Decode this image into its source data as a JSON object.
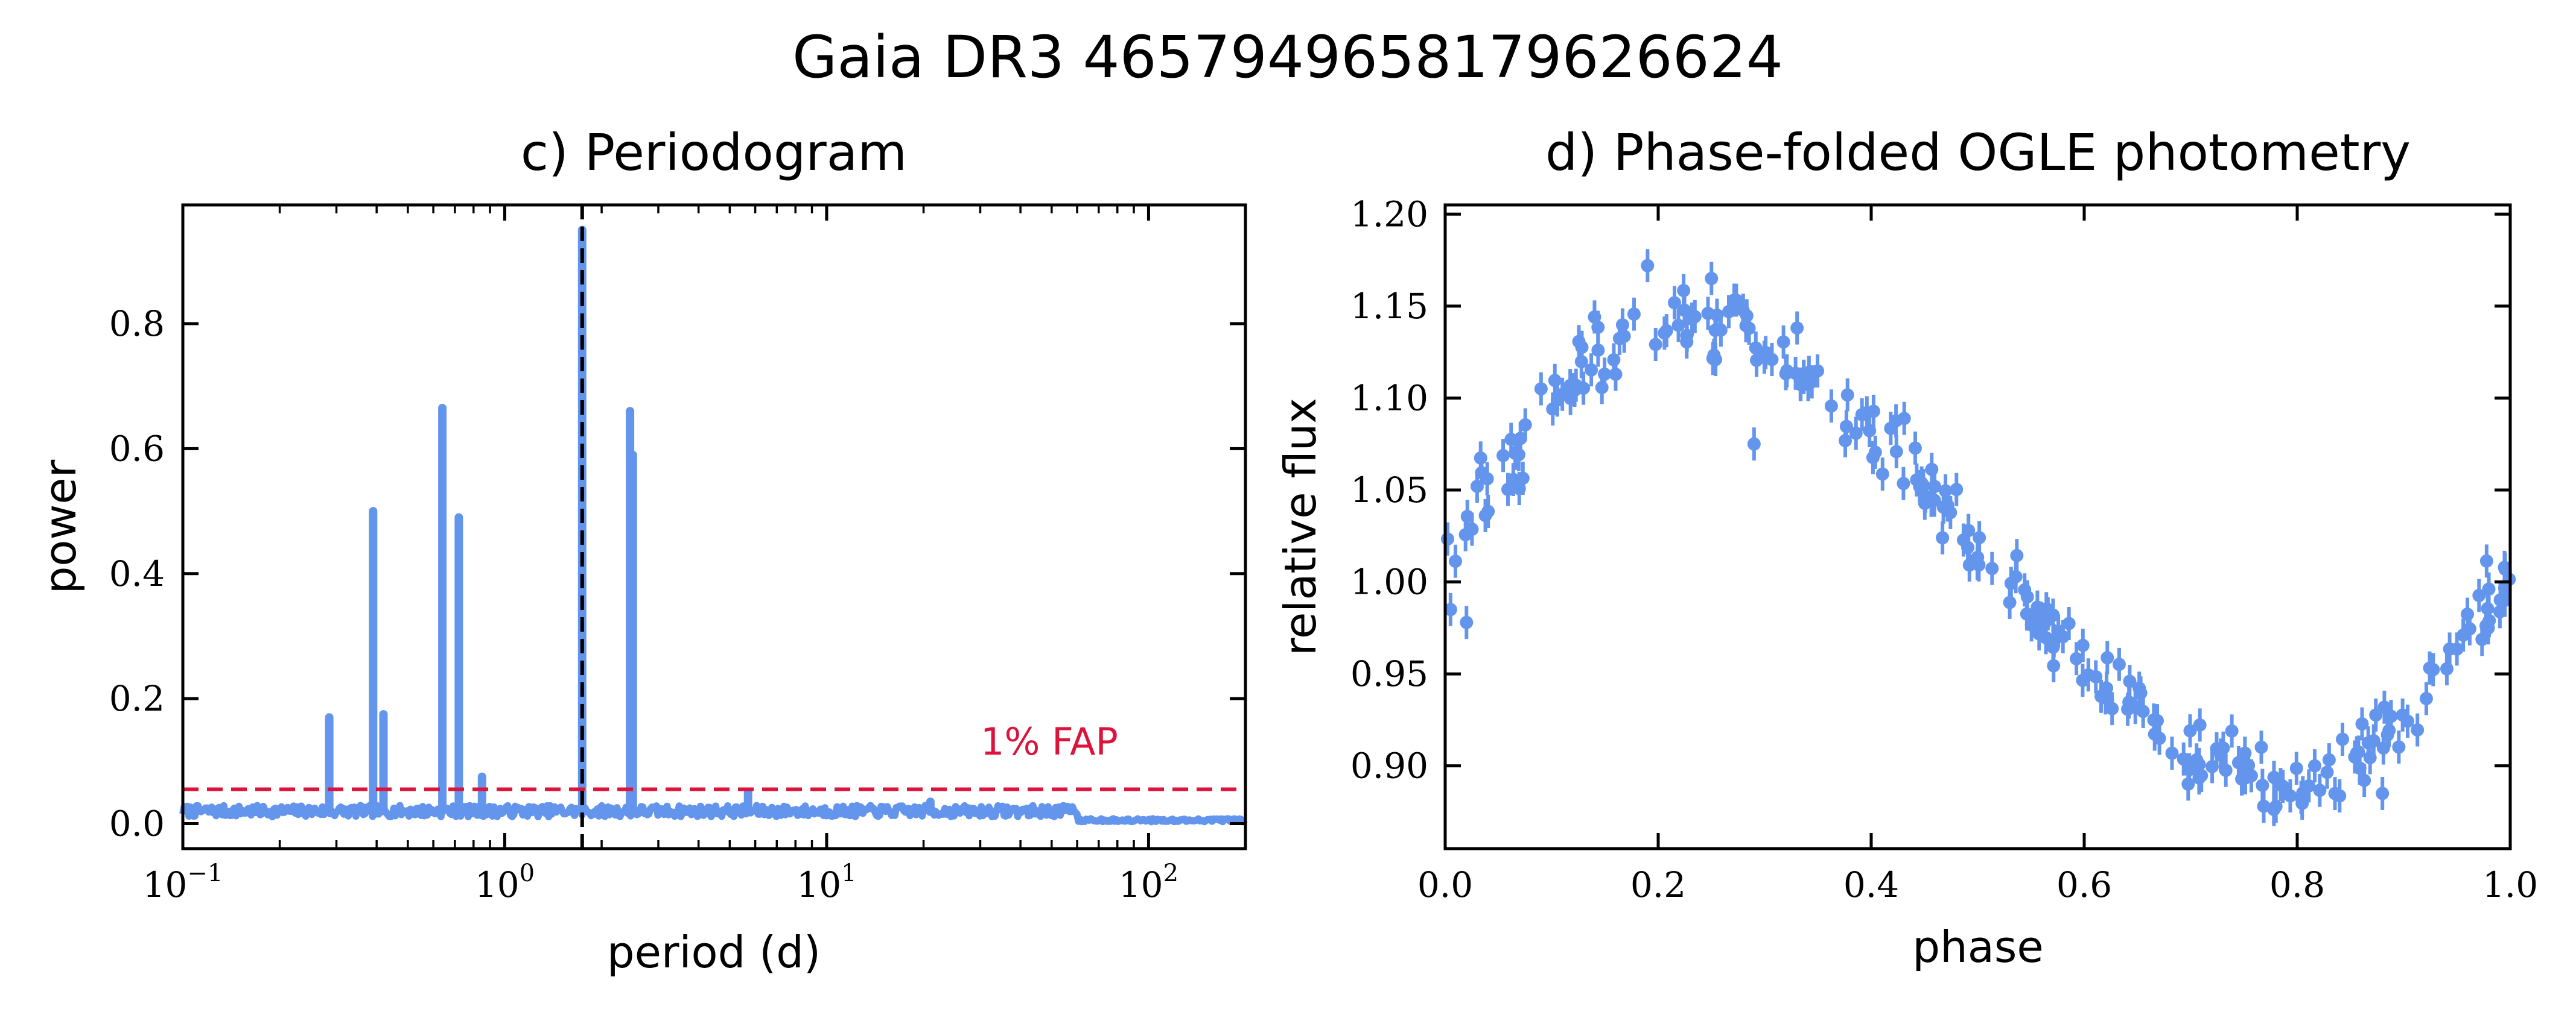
{
  "suptitle": "Gaia DR3 4657949658179626624",
  "chart_data": [
    {
      "type": "line",
      "title": "c) Periodogram",
      "xlabel": "period (d)",
      "ylabel": "power",
      "xscale": "log",
      "xlim": [
        0.1,
        200
      ],
      "ylim": [
        -0.04,
        0.99
      ],
      "xtick_labels": [
        {
          "base": "10",
          "exp": "−1",
          "value": 0.1
        },
        {
          "base": "10",
          "exp": "0",
          "value": 1
        },
        {
          "base": "10",
          "exp": "1",
          "value": 10
        },
        {
          "base": "10",
          "exp": "2",
          "value": 100
        }
      ],
      "yticks": [
        0.0,
        0.2,
        0.4,
        0.6,
        0.8
      ],
      "ytick_labels": [
        "0.0",
        "0.2",
        "0.4",
        "0.6",
        "0.8"
      ],
      "series_color": "#6495ED",
      "noise_floor": 0.02,
      "peaks": [
        {
          "period": 0.285,
          "power": 0.17
        },
        {
          "period": 0.39,
          "power": 0.5
        },
        {
          "period": 0.42,
          "power": 0.175
        },
        {
          "period": 0.64,
          "power": 0.665
        },
        {
          "period": 0.72,
          "power": 0.49
        },
        {
          "period": 0.85,
          "power": 0.075
        },
        {
          "period": 1.74,
          "power": 0.95
        },
        {
          "period": 2.45,
          "power": 0.66
        },
        {
          "period": 2.5,
          "power": 0.59
        },
        {
          "period": 5.7,
          "power": 0.05
        },
        {
          "period": 21.0,
          "power": 0.035
        }
      ],
      "best_period": 1.74,
      "best_period_color": "#000000",
      "fap_level": 0.055,
      "fap_label": "1% FAP",
      "fap_color": "#DC143C"
    },
    {
      "type": "scatter",
      "title": "d) Phase-folded OGLE photometry",
      "xlabel": "phase",
      "ylabel": "relative flux",
      "xlim": [
        0.0,
        1.0
      ],
      "ylim": [
        0.855,
        1.205
      ],
      "xticks": [
        0.0,
        0.2,
        0.4,
        0.6,
        0.8,
        1.0
      ],
      "xtick_labels": [
        "0.0",
        "0.2",
        "0.4",
        "0.6",
        "0.8",
        "1.0"
      ],
      "yticks": [
        0.9,
        0.95,
        1.0,
        1.05,
        1.1,
        1.15,
        1.2
      ],
      "ytick_labels": [
        "0.90",
        "0.95",
        "1.00",
        "1.05",
        "1.10",
        "1.15",
        "1.20"
      ],
      "series_color": "#6495ED",
      "n_points": 260,
      "error_bar": 0.009,
      "model": {
        "mean": 1.015,
        "semi_amplitude": 0.123,
        "max_phase": 0.215,
        "min_phase": 0.8
      },
      "outliers": [
        {
          "x": 0.005,
          "y": 0.985
        },
        {
          "x": 0.02,
          "y": 0.978
        },
        {
          "x": 0.03,
          "y": 1.052
        },
        {
          "x": 0.09,
          "y": 1.105
        },
        {
          "x": 0.19,
          "y": 1.172
        },
        {
          "x": 0.25,
          "y": 1.165
        },
        {
          "x": 0.29,
          "y": 1.075
        },
        {
          "x": 0.78,
          "y": 0.878
        },
        {
          "x": 0.88,
          "y": 0.885
        },
        {
          "x": 0.995,
          "y": 0.99
        }
      ]
    }
  ]
}
